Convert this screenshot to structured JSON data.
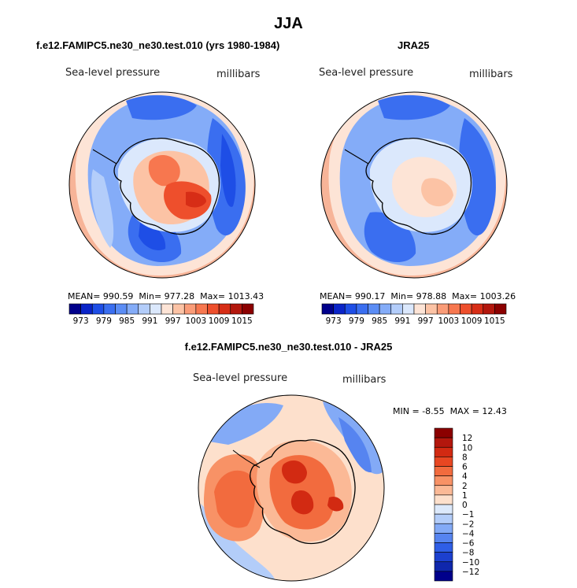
{
  "chart_data": [
    {
      "type": "heatmap",
      "projection": "south-polar-stereographic",
      "title": "f.e12.FAMIPC5.ne30_ne30.test.010 (yrs 1980-1984)",
      "variable_label": "Sea-level pressure",
      "units_label": "millibars",
      "stats": {
        "mean_label": "MEAN=",
        "mean": "990.59",
        "min_label": "Min=",
        "min": "977.28",
        "max_label": "Max=",
        "max": "1013.43"
      },
      "colorbar_ticks": [
        "973",
        "979",
        "985",
        "991",
        "997",
        "1003",
        "1009",
        "1015"
      ]
    },
    {
      "type": "heatmap",
      "projection": "south-polar-stereographic",
      "title": "JRA25",
      "variable_label": "Sea-level pressure",
      "units_label": "millibars",
      "stats": {
        "mean_label": "MEAN=",
        "mean": "990.17",
        "min_label": "Min=",
        "min": "978.88",
        "max_label": "Max=",
        "max": "1003.26"
      },
      "colorbar_ticks": [
        "973",
        "979",
        "985",
        "991",
        "997",
        "1003",
        "1009",
        "1015"
      ]
    },
    {
      "type": "heatmap",
      "projection": "south-polar-stereographic",
      "title": "f.e12.FAMIPC5.ne30_ne30.test.010 - JRA25",
      "variable_label": "Sea-level pressure",
      "units_label": "millibars",
      "stats": {
        "min_label": "MIN =",
        "min": "-8.55",
        "max_label": "MAX =",
        "max": "12.43"
      },
      "colorbar_ticks": [
        "12",
        "10",
        "8",
        "6",
        "4",
        "2",
        "1",
        "0",
        "−1",
        "−2",
        "−4",
        "−6",
        "−8",
        "−10",
        "−12"
      ]
    }
  ],
  "figure": {
    "title": "JJA"
  },
  "colors": {
    "abs_scale": [
      "#00008b",
      "#0a24c8",
      "#1e4ee6",
      "#3a6ef0",
      "#5b8df5",
      "#84acf8",
      "#b3cdfa",
      "#dbe8fc",
      "#fde4d6",
      "#fcc3a5",
      "#fa9c78",
      "#f7774f",
      "#ee4f2c",
      "#d72d16",
      "#b3170d",
      "#8b0000"
    ],
    "diff_scale": [
      "#8b0000",
      "#b3170d",
      "#d22a12",
      "#e84722",
      "#f26b3e",
      "#f89266",
      "#fbb996",
      "#fde0cc",
      "#dce9fb",
      "#b3cdf9",
      "#83aaf6",
      "#5684f0",
      "#2f5ee6",
      "#1c40cf",
      "#0f27ac",
      "#00008b"
    ],
    "land_outline": "#000000",
    "circle_outline": "#000000"
  }
}
